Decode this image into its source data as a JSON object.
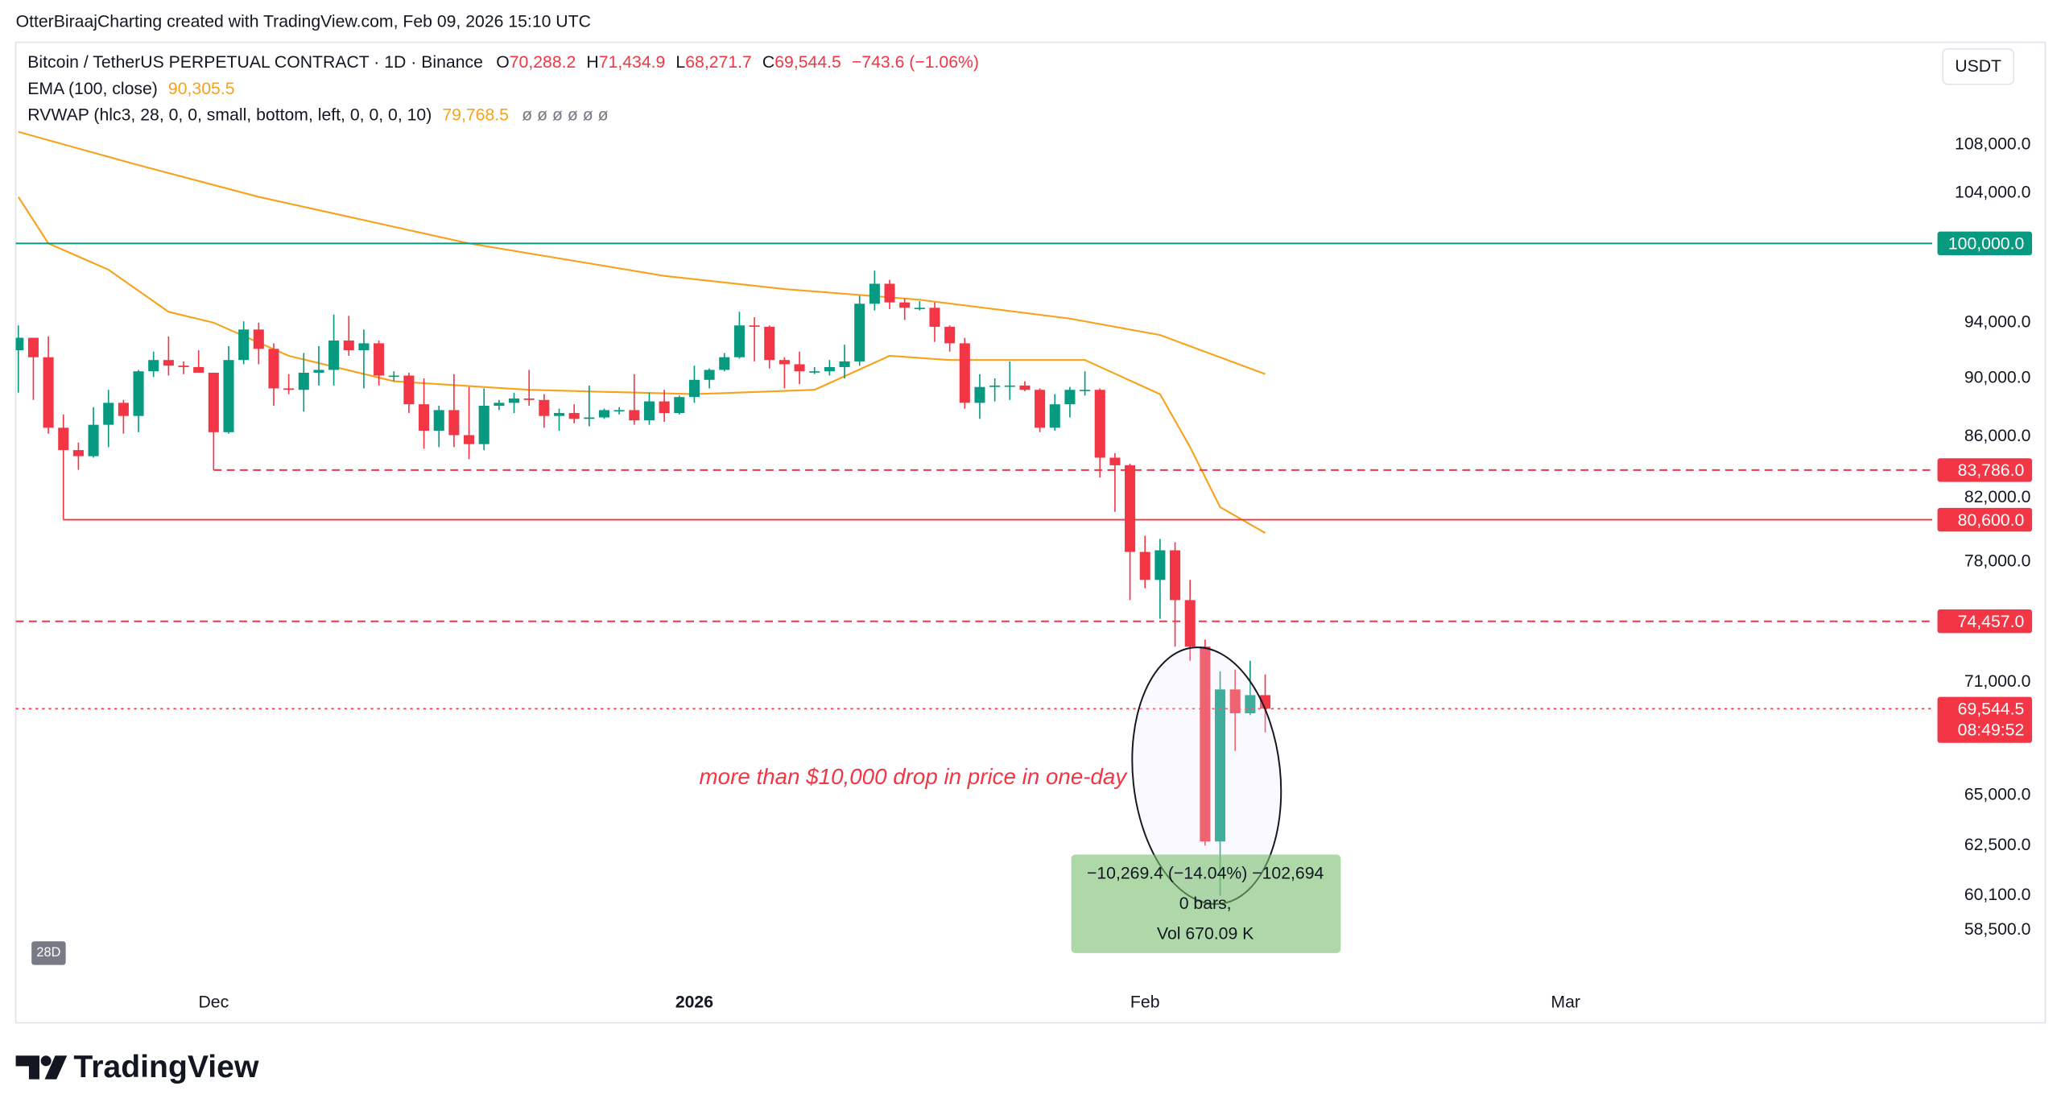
{
  "attribution": "OtterBiraajCharting created with TradingView.com, Feb 09, 2026 15:10 UTC",
  "currency": "USDT",
  "brand": "TradingView",
  "chart_data": {
    "type": "candlestick",
    "title": "Bitcoin / TetherUS PERPETUAL CONTRACT · 1D · Binance",
    "legend_values": [
      {
        "key": "O",
        "value": "70,288.2"
      },
      {
        "key": "H",
        "value": "71,434.9"
      },
      {
        "key": "L",
        "value": "68,271.7"
      },
      {
        "key": "C",
        "value": "69,544.5"
      }
    ],
    "change": "−743.6 (−1.06%)",
    "up_color": "#089981",
    "down_color": "#f23645",
    "open": [
      92000,
      92900,
      91500,
      86600,
      85100,
      84700,
      86800,
      88300,
      87400,
      90500,
      91300,
      90900,
      90800,
      90400,
      86300,
      91300,
      93500,
      92100,
      89300,
      89200,
      90400,
      90600,
      92700,
      92000,
      92500,
      90200,
      90200,
      88200,
      86400,
      87800,
      86100,
      85500,
      88100,
      88300,
      88600,
      88500,
      87400,
      87600,
      87200,
      87300,
      87800,
      87800,
      87100,
      88400,
      87600,
      88700,
      89900,
      90600,
      91500,
      93800,
      93700,
      91300,
      91000,
      90500,
      90500,
      90800,
      91200,
      95400,
      96900,
      95500,
      95100,
      95100,
      93700,
      92500,
      88300,
      89400,
      89500,
      89500,
      89200,
      86600,
      88200,
      89200,
      89200,
      84600,
      84100,
      78600,
      76900,
      78700,
      75700,
      73000,
      62700,
      70600,
      69300,
      70288.2
    ],
    "high": [
      93800,
      92900,
      93000,
      87500,
      85600,
      88000,
      89200,
      88500,
      90600,
      91900,
      93000,
      91200,
      92000,
      90400,
      92300,
      94100,
      94000,
      92500,
      90300,
      91800,
      92300,
      94600,
      94500,
      93500,
      92700,
      90500,
      90400,
      90000,
      88100,
      90300,
      89400,
      89300,
      88500,
      89000,
      90600,
      88900,
      87900,
      88200,
      89500,
      87900,
      88000,
      90300,
      89000,
      89200,
      88800,
      90900,
      90700,
      91800,
      94800,
      94400,
      93800,
      91500,
      91900,
      90800,
      91300,
      92400,
      96000,
      97900,
      97200,
      95800,
      95600,
      95500,
      93800,
      92900,
      90300,
      90000,
      91200,
      89800,
      89300,
      88900,
      89400,
      90500,
      89300,
      84900,
      84200,
      79600,
      79400,
      79200,
      76900,
      73400,
      71600,
      71700,
      72200,
      71434.9
    ],
    "low": [
      89000,
      88500,
      86200,
      80600,
      83800,
      84600,
      85300,
      86200,
      86300,
      90100,
      90200,
      90300,
      90400,
      83786,
      86200,
      91000,
      91000,
      88100,
      88900,
      87700,
      89500,
      89500,
      91600,
      89300,
      89500,
      89800,
      87600,
      85200,
      85300,
      85300,
      84500,
      85100,
      87800,
      87600,
      88100,
      86600,
      86400,
      86900,
      86700,
      87200,
      87500,
      86800,
      86800,
      87000,
      87500,
      88300,
      89300,
      90500,
      91400,
      91200,
      90700,
      89300,
      89600,
      90300,
      90200,
      90000,
      90900,
      94900,
      95000,
      94200,
      94900,
      92600,
      91900,
      87900,
      87200,
      88400,
      88500,
      89100,
      86300,
      86400,
      87300,
      88800,
      83300,
      81100,
      75700,
      76400,
      74600,
      73000,
      72200,
      62500,
      60100,
      67300,
      69200,
      68271.7
    ],
    "close": [
      92900,
      91500,
      86600,
      85100,
      84700,
      86800,
      88300,
      87400,
      90500,
      91300,
      90900,
      90800,
      90400,
      86300,
      91300,
      93500,
      92100,
      89300,
      89200,
      90400,
      90600,
      92700,
      92000,
      92500,
      90200,
      90200,
      88200,
      86400,
      87800,
      86100,
      85500,
      88100,
      88300,
      88600,
      88500,
      87400,
      87600,
      87200,
      87300,
      87800,
      87800,
      87100,
      88400,
      87600,
      88700,
      89900,
      90600,
      91500,
      93800,
      93700,
      91300,
      91000,
      90500,
      90500,
      90800,
      91200,
      95400,
      96900,
      95500,
      95100,
      95100,
      93700,
      92500,
      88300,
      89400,
      89500,
      89500,
      89200,
      86600,
      88200,
      89200,
      89200,
      84600,
      84100,
      78600,
      76900,
      78700,
      75700,
      73000,
      62700,
      70600,
      69300,
      70288.2,
      69544.5
    ],
    "indicators": [
      {
        "type": "line",
        "name": "EMA (100, close)",
        "last_label": "90,305.5",
        "color": "#f7a21b",
        "x": [
          0,
          8,
          16,
          30,
          43,
          51,
          60,
          70,
          76,
          83
        ],
        "values": [
          109100,
          106300,
          103700,
          100000,
          97500,
          96500,
          95700,
          94300,
          93100,
          90305.5
        ]
      },
      {
        "type": "line",
        "name": "RVWAP (hlc3, 28, 0, 0, small, bottom, left, 0, 0, 0, 10)",
        "last_label": "79,768.5",
        "marks": "ø ø ø ø ø ø",
        "color": "#f7a21b",
        "x": [
          0,
          2,
          6,
          10,
          13,
          18,
          25,
          34,
          45,
          53,
          58,
          62,
          71,
          76,
          78,
          80,
          83
        ],
        "values": [
          103700,
          100000,
          97970,
          94800,
          94000,
          91600,
          89800,
          89200,
          88900,
          89200,
          91600,
          91300,
          91300,
          88900,
          85300,
          81400,
          79768.5
        ]
      }
    ],
    "levels": [
      {
        "value": 100000,
        "label": "100,000.0",
        "color": "#089981",
        "style": "solid",
        "from": -0.17
      },
      {
        "value": 83786,
        "label": "83,786.0",
        "color": "#f23645",
        "style": "dashed",
        "from": 13
      },
      {
        "value": 80600,
        "label": "80,600.0",
        "color": "#f23645",
        "style": "solid",
        "from": 3
      },
      {
        "value": 74457,
        "label": "74,457.0",
        "color": "#f23645",
        "style": "dashed",
        "from": -0.17
      }
    ],
    "last_price": {
      "value": 69544.5,
      "label": "69,544.5",
      "countdown": "08:49:52",
      "color": "#f23645"
    },
    "annotation": "more than $10,000 drop in price in one-day",
    "measure": [
      "−10,269.4 (−14.04%) −102,694",
      "0 bars,",
      "Vol 670.09 K"
    ],
    "badge": "28D",
    "xlim": [
      -0.17,
      127.4
    ],
    "xticks": [
      {
        "value": 13,
        "label": "Dec"
      },
      {
        "value": 45,
        "label": "2026"
      },
      {
        "value": 75,
        "label": "Feb"
      },
      {
        "value": 103,
        "label": "Mar"
      }
    ],
    "ylim": [
      56300,
      117000
    ],
    "log_scale": true,
    "yticks": [
      {
        "value": 108000,
        "label": "108,000.0"
      },
      {
        "value": 104000,
        "label": "104,000.0"
      },
      {
        "value": 94000,
        "label": "94,000.0"
      },
      {
        "value": 90000,
        "label": "90,000.0"
      },
      {
        "value": 86000,
        "label": "86,000.0"
      },
      {
        "value": 82000,
        "label": "82,000.0"
      },
      {
        "value": 78000,
        "label": "78,000.0"
      },
      {
        "value": 71000,
        "label": "71,000.0"
      },
      {
        "value": 65000,
        "label": "65,000.0"
      },
      {
        "value": 62500,
        "label": "62,500.0"
      },
      {
        "value": 60100,
        "label": "60,100.0"
      },
      {
        "value": 58500,
        "label": "58,500.0"
      }
    ]
  }
}
